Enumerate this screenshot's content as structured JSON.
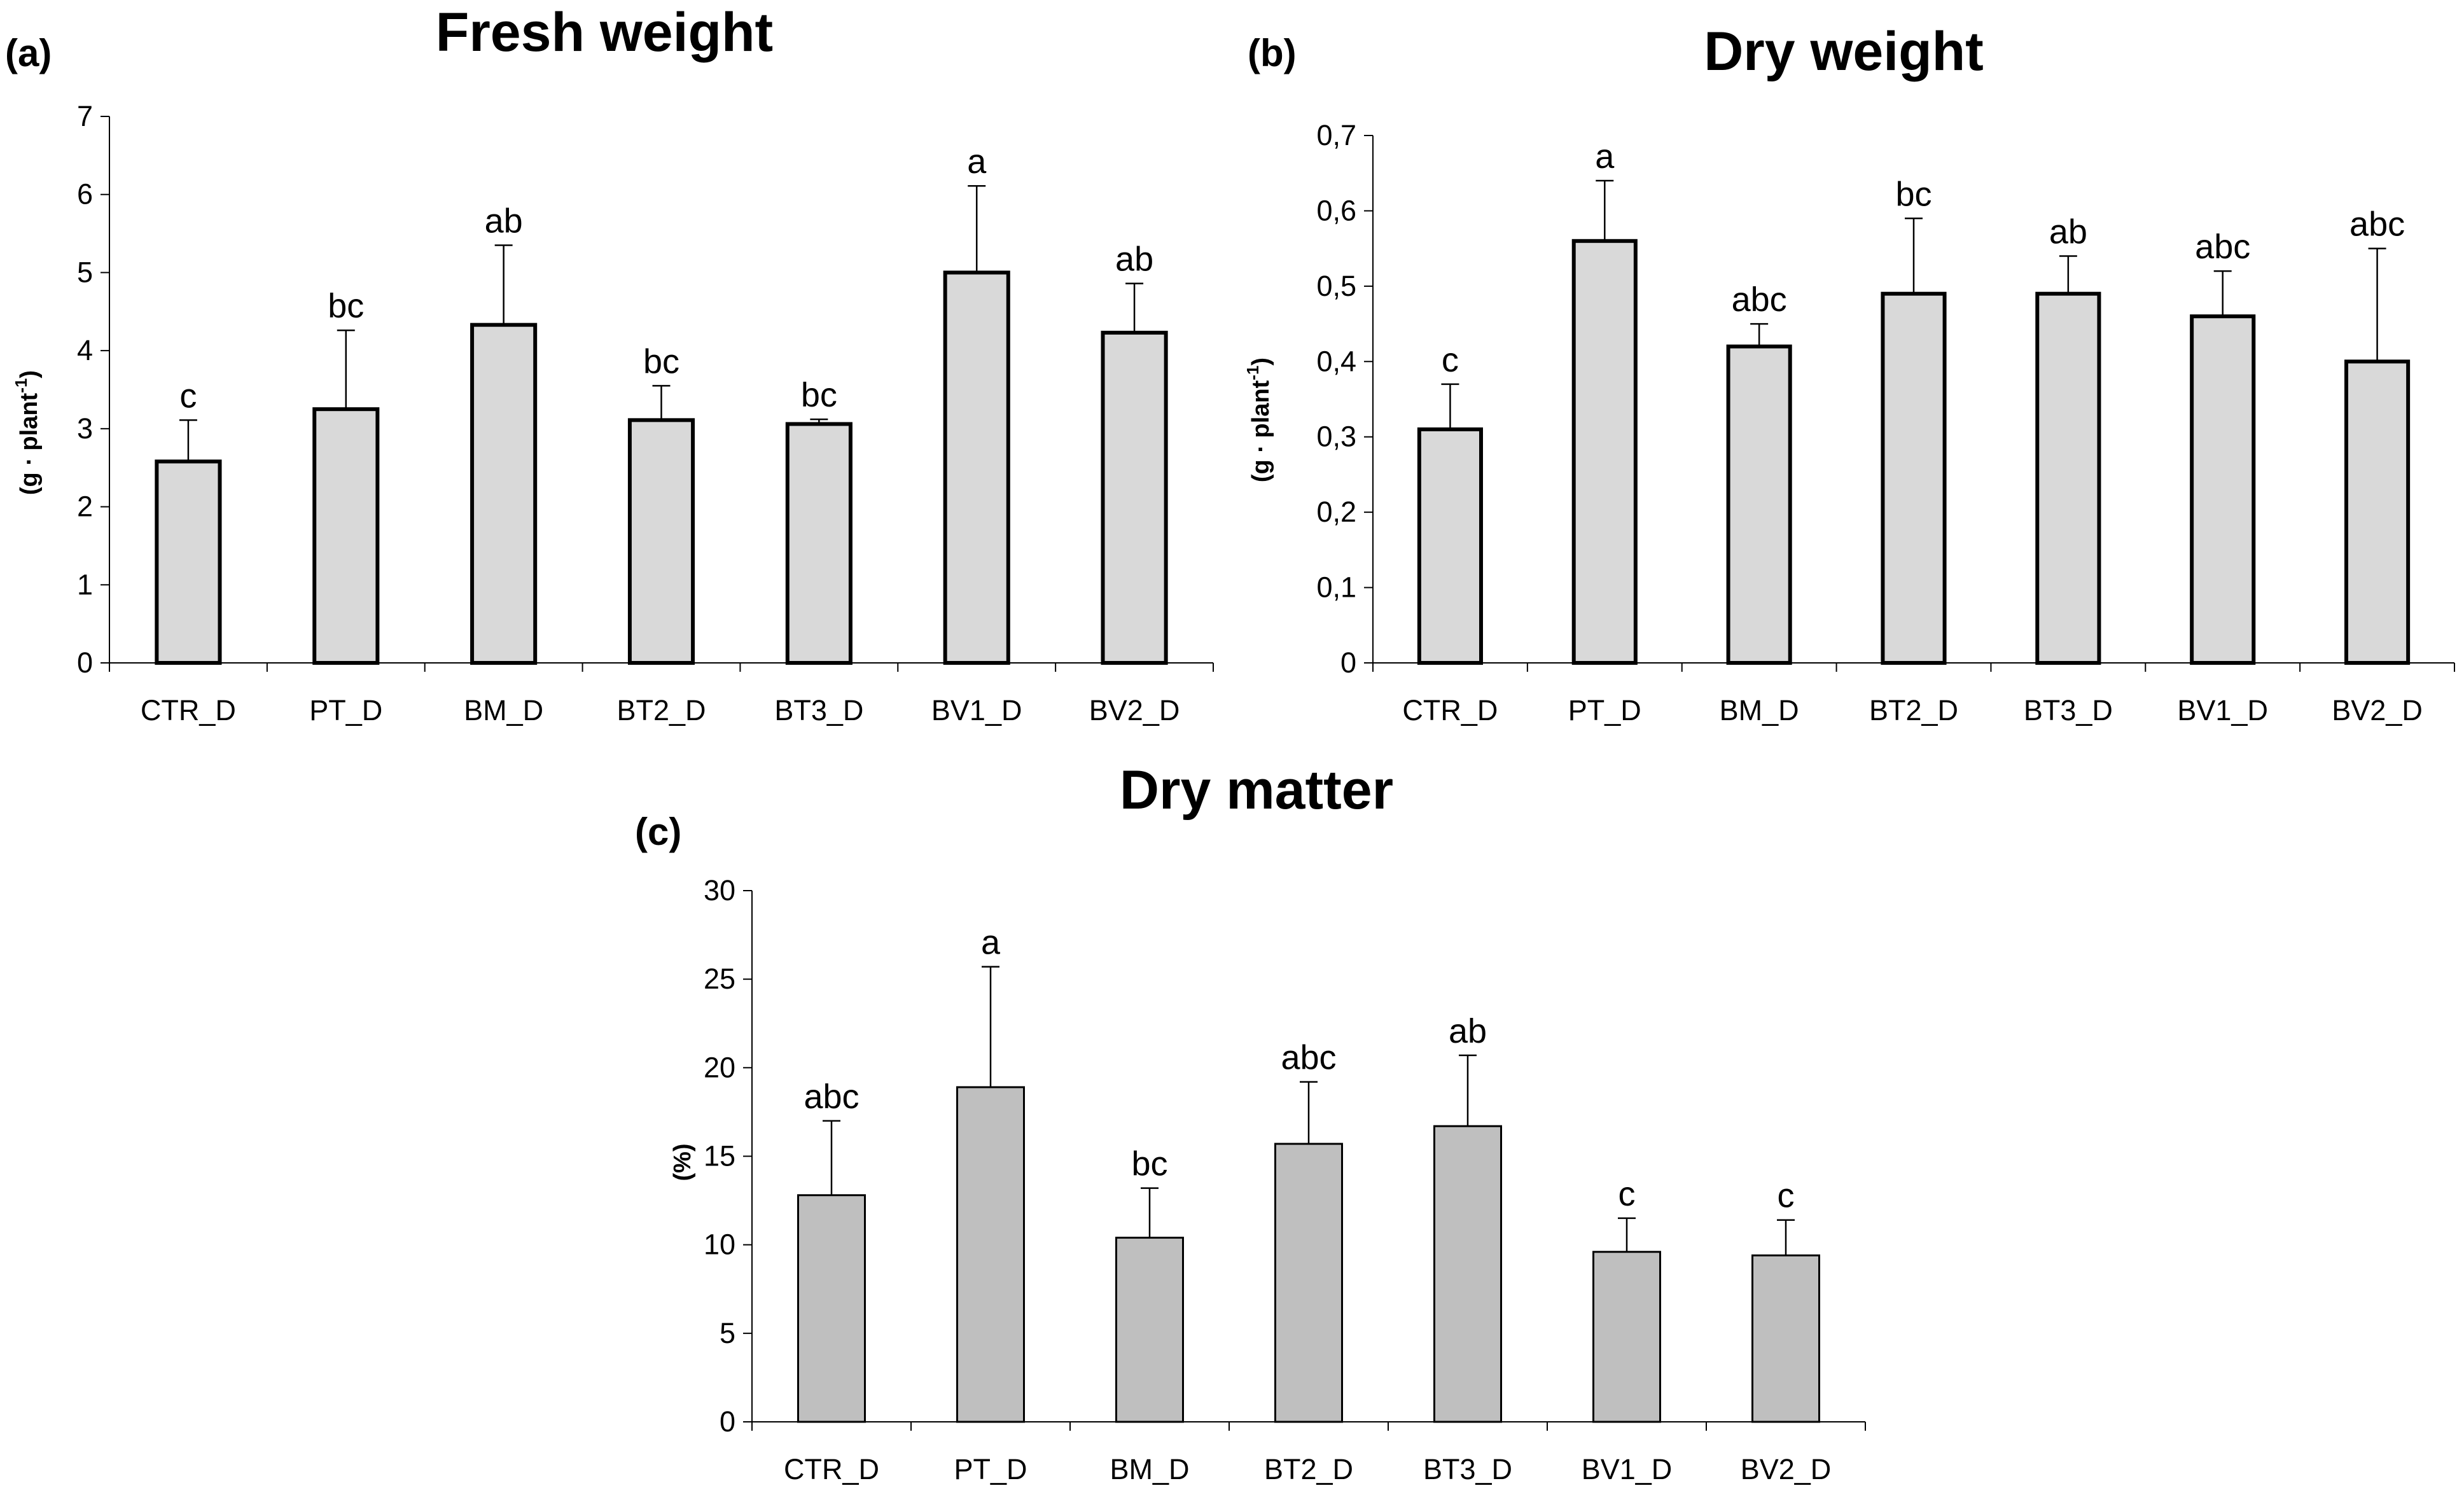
{
  "chart_data": [
    {
      "type": "bar",
      "panel_label": "(a)",
      "title": "Fresh weight",
      "ylabel": "(g · plant",
      "ylabel_sup": "-1",
      "ylabel_close": ")",
      "xlabel": "",
      "categories": [
        "CTR_D",
        "PT_D",
        "BM_D",
        "BT2_D",
        "BT3_D",
        "BV1_D",
        "BV2_D"
      ],
      "values": [
        2.58,
        3.25,
        4.33,
        3.11,
        3.06,
        5.0,
        4.23
      ],
      "errors": [
        0.53,
        1.01,
        1.02,
        0.44,
        0.06,
        1.11,
        0.63
      ],
      "letters": [
        "c",
        "bc",
        "ab",
        "bc",
        "bc",
        "a",
        "ab"
      ],
      "ylim": [
        0,
        7
      ],
      "ytick_labels": [
        "0",
        "1",
        "2",
        "3",
        "4",
        "5",
        "6",
        "7"
      ],
      "bar_color": "#d9d9d9",
      "bar_stroke": "#000000"
    },
    {
      "type": "bar",
      "panel_label": "(b)",
      "title": "Dry weight",
      "ylabel": "(g · plant",
      "ylabel_sup": "-1",
      "ylabel_close": ")",
      "xlabel": "",
      "categories": [
        "CTR_D",
        "PT_D",
        "BM_D",
        "BT2_D",
        "BT3_D",
        "BV1_D",
        "BV2_D"
      ],
      "values": [
        0.31,
        0.56,
        0.42,
        0.49,
        0.49,
        0.46,
        0.4
      ],
      "errors": [
        0.06,
        0.08,
        0.03,
        0.1,
        0.05,
        0.06,
        0.15
      ],
      "letters": [
        "c",
        "a",
        "abc",
        "bc",
        "ab",
        "abc",
        "abc"
      ],
      "ylim": [
        0,
        0.7
      ],
      "ytick_labels": [
        "0",
        "0,1",
        "0,2",
        "0,3",
        "0,4",
        "0,5",
        "0,6",
        "0,7"
      ],
      "bar_color": "#d9d9d9",
      "bar_stroke": "#000000"
    },
    {
      "type": "bar",
      "panel_label": "(c)",
      "title": "Dry matter",
      "ylabel": "(%)",
      "ylabel_sup": "",
      "ylabel_close": "",
      "xlabel": "",
      "categories": [
        "CTR_D",
        "PT_D",
        "BM_D",
        "BT2_D",
        "BT3_D",
        "BV1_D",
        "BV2_D"
      ],
      "values": [
        12.8,
        18.9,
        10.4,
        15.7,
        16.7,
        9.6,
        9.4
      ],
      "errors": [
        4.2,
        6.8,
        2.8,
        3.5,
        4.0,
        1.9,
        2.0
      ],
      "letters": [
        "abc",
        "a",
        "bc",
        "abc",
        "ab",
        "c",
        "c"
      ],
      "ylim": [
        0,
        30
      ],
      "ytick_labels": [
        "0",
        "5",
        "10",
        "15",
        "20",
        "25",
        "30"
      ],
      "bar_color": "#bfbfbf",
      "bar_stroke": "#000000"
    }
  ]
}
